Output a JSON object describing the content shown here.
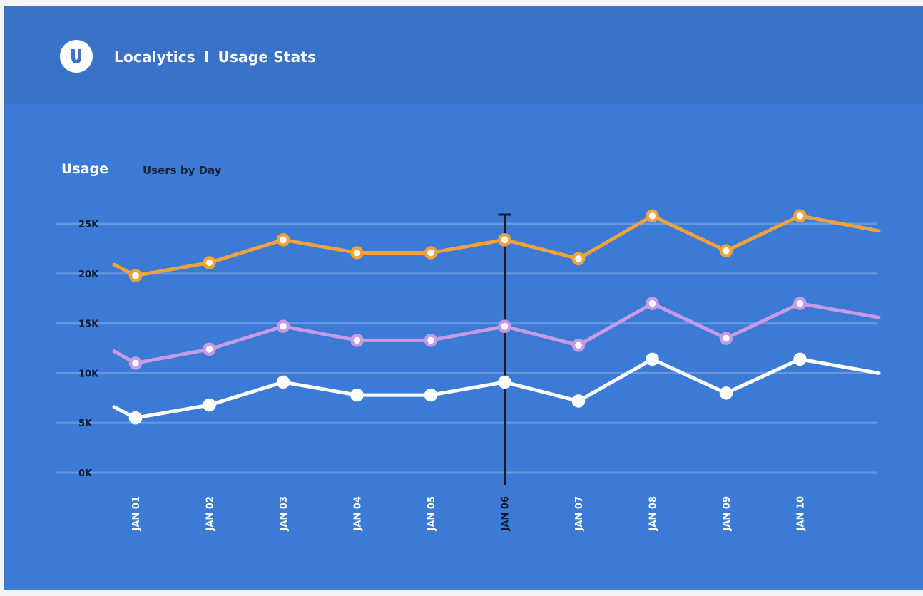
{
  "header": {
    "brand": "Localytics",
    "separator": "I",
    "page": "Usage Stats",
    "logo_icon": "localytics-logo-icon"
  },
  "section": {
    "title": "Usage",
    "subtitle": "Users by Day"
  },
  "chart_data": {
    "type": "line",
    "title": "",
    "xlabel": "",
    "ylabel": "",
    "categories": [
      "JAN 01",
      "JAN 02",
      "JAN 03",
      "JAN 04",
      "JAN 05",
      "JAN 06",
      "JAN 07",
      "JAN 08",
      "JAN 09",
      "JAN 10"
    ],
    "y_ticks": [
      "0K",
      "5K",
      "10K",
      "15K",
      "20K",
      "25K"
    ],
    "ylim": [
      0,
      25000
    ],
    "grid": true,
    "legend": "none",
    "highlighted_category": "JAN 06",
    "series": [
      {
        "color": "#f2a23a",
        "start": 20900,
        "values": [
          19800,
          21100,
          23400,
          22100,
          22100,
          23400,
          21500,
          25800,
          22300,
          25800
        ],
        "end": 24300
      },
      {
        "color": "#c79ae6",
        "start": 12200,
        "values": [
          11000,
          12400,
          14700,
          13300,
          13300,
          14700,
          12800,
          17000,
          13500,
          17000
        ],
        "end": 15600
      },
      {
        "color": "#ffffff",
        "start": 6600,
        "values": [
          5500,
          6800,
          9100,
          7800,
          7800,
          9100,
          7200,
          11400,
          8000,
          11400
        ],
        "end": 10000
      }
    ]
  }
}
